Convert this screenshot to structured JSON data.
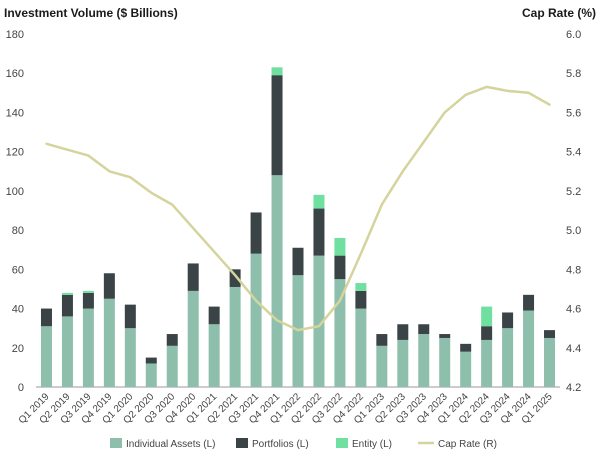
{
  "chart_data": {
    "type": "bar",
    "stacked": true,
    "left_axis_title": "Investment Volume ($ Billions)",
    "right_axis_title": "Cap Rate (%)",
    "categories": [
      "Q1 2019",
      "Q2 2019",
      "Q3 2019",
      "Q4 2019",
      "Q1 2020",
      "Q2 2020",
      "Q3 2020",
      "Q4 2020",
      "Q1 2021",
      "Q2 2021",
      "Q3 2021",
      "Q4 2021",
      "Q1 2022",
      "Q2 2022",
      "Q3 2022",
      "Q4 2022",
      "Q1 2023",
      "Q2 2023",
      "Q3 2023",
      "Q4 2023",
      "Q1 2024",
      "Q2 2024",
      "Q3 2024",
      "Q4 2024",
      "Q1 2025"
    ],
    "ylim_left": [
      0,
      180
    ],
    "yticks_left": [
      0,
      20,
      40,
      60,
      80,
      100,
      120,
      140,
      160,
      180
    ],
    "ylim_right": [
      4.2,
      6.0
    ],
    "yticks_right": [
      "4.2",
      "4.4",
      "4.6",
      "4.8",
      "5.0",
      "5.2",
      "5.4",
      "5.6",
      "5.8",
      "6.0"
    ],
    "series": [
      {
        "name": "Individual Assets (L)",
        "axis": "left",
        "kind": "bar",
        "color": "#8dbfac",
        "values": [
          31,
          36,
          40,
          45,
          30,
          12,
          21,
          49,
          32,
          51,
          68,
          108,
          57,
          67,
          55,
          40,
          21,
          24,
          27,
          25,
          18,
          24,
          30,
          39,
          25
        ]
      },
      {
        "name": "Portfolios (L)",
        "axis": "left",
        "kind": "bar",
        "color": "#3a4346",
        "values": [
          9,
          11,
          8,
          13,
          12,
          3,
          6,
          14,
          9,
          9,
          21,
          51,
          14,
          24,
          12,
          9,
          6,
          8,
          5,
          2,
          4,
          7,
          8,
          8,
          4
        ]
      },
      {
        "name": "Entity (L)",
        "axis": "left",
        "kind": "bar",
        "color": "#70e0a0",
        "values": [
          0,
          1,
          1,
          0,
          0,
          0,
          0,
          0,
          0,
          0,
          0,
          4,
          0,
          7,
          9,
          4,
          0,
          0,
          0,
          0,
          0,
          10,
          0,
          0,
          0
        ]
      },
      {
        "name": "Cap Rate (R)",
        "axis": "right",
        "kind": "line",
        "color": "#d4d49c",
        "values": [
          5.44,
          5.41,
          5.38,
          5.3,
          5.27,
          5.19,
          5.13,
          5.01,
          4.89,
          4.77,
          4.64,
          4.54,
          4.49,
          4.51,
          4.64,
          4.88,
          5.13,
          5.3,
          5.45,
          5.6,
          5.69,
          5.73,
          5.71,
          5.7,
          5.64
        ]
      }
    ],
    "legend_position": "bottom",
    "grid": false
  }
}
